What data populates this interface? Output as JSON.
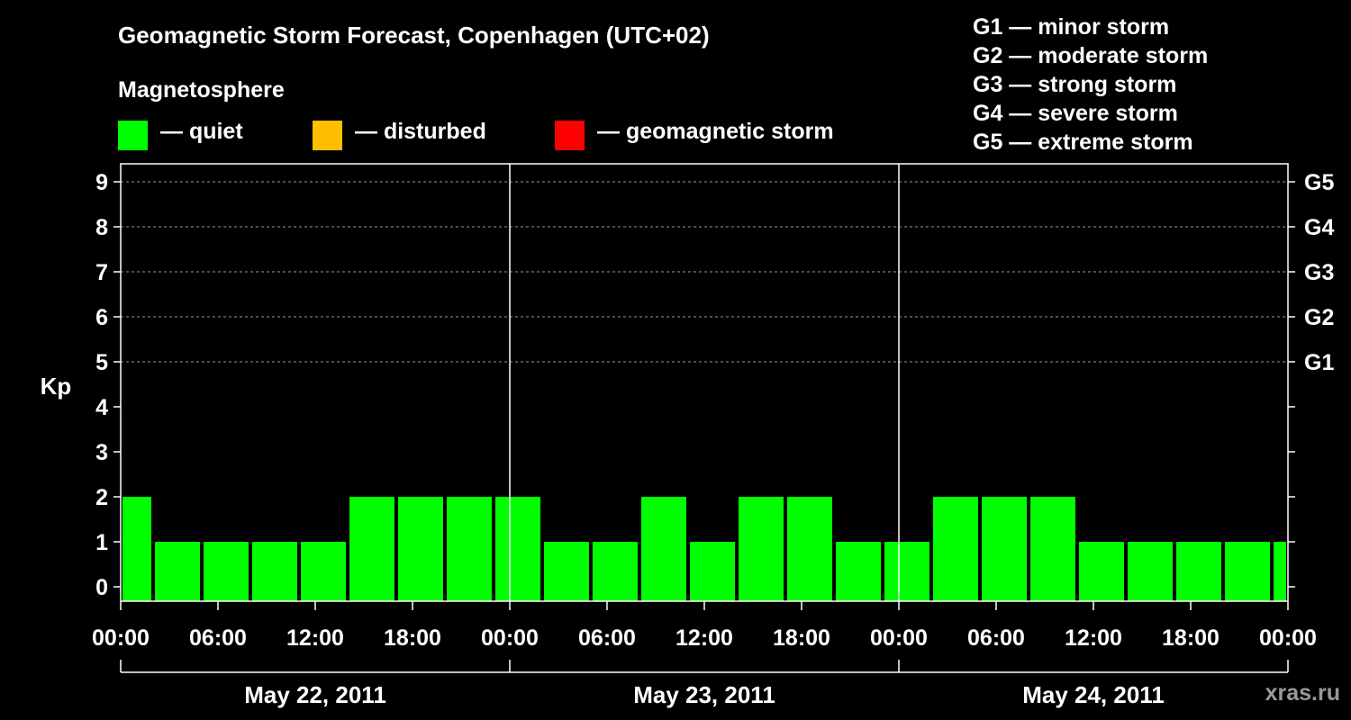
{
  "chart_data": {
    "type": "bar",
    "title": "Geomagnetic Storm Forecast, Copenhagen (UTC+02)",
    "subtitle": "Magnetosphere",
    "ylabel": "Kp",
    "ylim": [
      0,
      9
    ],
    "yticks": [
      "0",
      "1",
      "2",
      "3",
      "4",
      "5",
      "6",
      "7",
      "8",
      "9"
    ],
    "right_ticks": [
      {
        "kp": 5,
        "label": "G1"
      },
      {
        "kp": 6,
        "label": "G2"
      },
      {
        "kp": 7,
        "label": "G3"
      },
      {
        "kp": 8,
        "label": "G4"
      },
      {
        "kp": 9,
        "label": "G5"
      }
    ],
    "grid_kp": [
      5,
      6,
      7,
      8,
      9
    ],
    "x_hours_range": [
      0,
      72
    ],
    "xticks": [
      {
        "hour": 0,
        "label": "00:00"
      },
      {
        "hour": 6,
        "label": "06:00"
      },
      {
        "hour": 12,
        "label": "12:00"
      },
      {
        "hour": 18,
        "label": "18:00"
      },
      {
        "hour": 24,
        "label": "00:00"
      },
      {
        "hour": 30,
        "label": "06:00"
      },
      {
        "hour": 36,
        "label": "12:00"
      },
      {
        "hour": 42,
        "label": "18:00"
      },
      {
        "hour": 48,
        "label": "00:00"
      },
      {
        "hour": 54,
        "label": "06:00"
      },
      {
        "hour": 60,
        "label": "12:00"
      },
      {
        "hour": 66,
        "label": "18:00"
      },
      {
        "hour": 72,
        "label": "00:00"
      }
    ],
    "days": [
      {
        "label": "May 22, 2011",
        "start_hour": 0,
        "end_hour": 24
      },
      {
        "label": "May 23, 2011",
        "start_hour": 24,
        "end_hour": 48
      },
      {
        "label": "May 24, 2011",
        "start_hour": 48,
        "end_hour": 72
      }
    ],
    "bars": [
      {
        "start_hour": 0,
        "end_hour": 2,
        "kp": 2
      },
      {
        "start_hour": 2,
        "end_hour": 5,
        "kp": 1
      },
      {
        "start_hour": 5,
        "end_hour": 8,
        "kp": 1
      },
      {
        "start_hour": 8,
        "end_hour": 11,
        "kp": 1
      },
      {
        "start_hour": 11,
        "end_hour": 14,
        "kp": 1
      },
      {
        "start_hour": 14,
        "end_hour": 17,
        "kp": 2
      },
      {
        "start_hour": 17,
        "end_hour": 20,
        "kp": 2
      },
      {
        "start_hour": 20,
        "end_hour": 23,
        "kp": 2
      },
      {
        "start_hour": 23,
        "end_hour": 26,
        "kp": 2
      },
      {
        "start_hour": 26,
        "end_hour": 29,
        "kp": 1
      },
      {
        "start_hour": 29,
        "end_hour": 32,
        "kp": 1
      },
      {
        "start_hour": 32,
        "end_hour": 35,
        "kp": 2
      },
      {
        "start_hour": 35,
        "end_hour": 38,
        "kp": 1
      },
      {
        "start_hour": 38,
        "end_hour": 41,
        "kp": 2
      },
      {
        "start_hour": 41,
        "end_hour": 44,
        "kp": 2
      },
      {
        "start_hour": 44,
        "end_hour": 47,
        "kp": 1
      },
      {
        "start_hour": 47,
        "end_hour": 50,
        "kp": 1
      },
      {
        "start_hour": 50,
        "end_hour": 53,
        "kp": 2
      },
      {
        "start_hour": 53,
        "end_hour": 56,
        "kp": 2
      },
      {
        "start_hour": 56,
        "end_hour": 59,
        "kp": 2
      },
      {
        "start_hour": 59,
        "end_hour": 62,
        "kp": 1
      },
      {
        "start_hour": 62,
        "end_hour": 65,
        "kp": 1
      },
      {
        "start_hour": 65,
        "end_hour": 68,
        "kp": 1
      },
      {
        "start_hour": 68,
        "end_hour": 71,
        "kp": 1
      },
      {
        "start_hour": 71,
        "end_hour": 72,
        "kp": 1
      }
    ],
    "bar_color": "#00ff00",
    "grid": true,
    "legend_placement": "top"
  },
  "legend": {
    "items": [
      {
        "label": "— quiet",
        "color": "#00ff00"
      },
      {
        "label": "— disturbed",
        "color": "#ffbf00"
      },
      {
        "label": "— geomagnetic storm",
        "color": "#ff0000"
      }
    ]
  },
  "storm_levels": [
    "G1 — minor storm",
    "G2 — moderate storm",
    "G3 — strong storm",
    "G4 — severe storm",
    "G5 — extreme storm"
  ],
  "watermark": "xras.ru"
}
